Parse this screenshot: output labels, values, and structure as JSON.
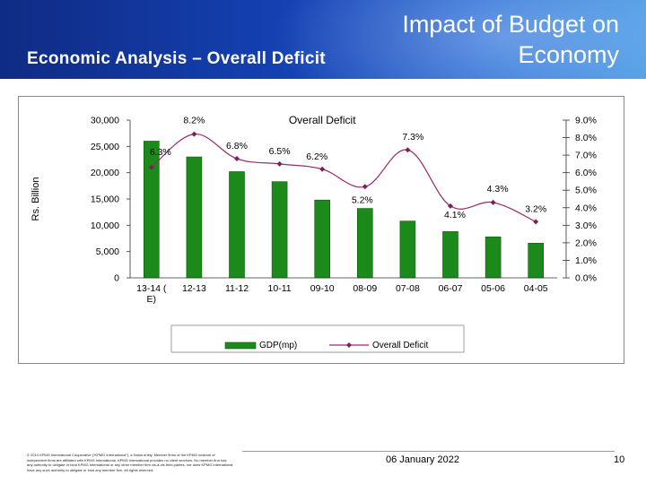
{
  "slide": {
    "section_title": "Economic Analysis – Overall Deficit",
    "deck_title": "Impact of Budget on Economy",
    "date": "06 January 2022",
    "page_number": "10",
    "footer_note": "© 2014 KPMG International Cooperative (“KPMG International”), a Swiss entity. Member firms of the KPMG network of independent firms are affiliated with KPMG International. KPMG International provides no client services. No member firm has any authority to obligate or bind KPMG International or any other member firm vis-à-vis third parties, nor does KPMG International have any such authority to obligate or bind any member firm. All rights reserved."
  },
  "colors": {
    "bar": "#1b8a1b",
    "bar_edge": "#0d5a0d",
    "line": "#9b2a6c",
    "marker": "#7a1f5a"
  },
  "chart_data": {
    "type": "bar",
    "title": "Overall Deficit",
    "categories": [
      "13-14 (E)",
      "12-13",
      "11-12",
      "10-11",
      "09-10",
      "08-09",
      "07-08",
      "06-07",
      "05-06",
      "04-05"
    ],
    "series": [
      {
        "name": "GDP(mp)",
        "type": "bar",
        "axis": "left",
        "values": [
          26000,
          23000,
          20200,
          18300,
          14800,
          13200,
          10800,
          8800,
          7800,
          6600
        ]
      },
      {
        "name": "Overall Deficit",
        "type": "line",
        "axis": "right",
        "values": [
          6.3,
          8.2,
          6.8,
          6.5,
          6.2,
          5.2,
          7.3,
          4.1,
          4.3,
          3.2
        ],
        "labels": [
          "6.3%",
          "8.2%",
          "6.8%",
          "6.5%",
          "6.2%",
          "5.2%",
          "7.3%",
          "4.1%",
          "4.3%",
          "3.2%"
        ]
      }
    ],
    "ylabel": "Rs. Billion",
    "ylim": [
      0,
      30000
    ],
    "yticks": [
      0,
      5000,
      10000,
      15000,
      20000,
      25000,
      30000
    ],
    "ytick_labels": [
      "0",
      "5,000",
      "10,000",
      "15,000",
      "20,000",
      "25,000",
      "30,000"
    ],
    "y2lim": [
      0,
      9
    ],
    "y2ticks": [
      0,
      1,
      2,
      3,
      4,
      5,
      6,
      7,
      8,
      9
    ],
    "y2tick_labels": [
      "0.0%",
      "1.0%",
      "2.0%",
      "3.0%",
      "4.0%",
      "5.0%",
      "6.0%",
      "7.0%",
      "8.0%",
      "9.0%"
    ],
    "legend": [
      "GDP(mp)",
      "Overall Deficit"
    ],
    "legend_position": "bottom",
    "grid": false
  }
}
